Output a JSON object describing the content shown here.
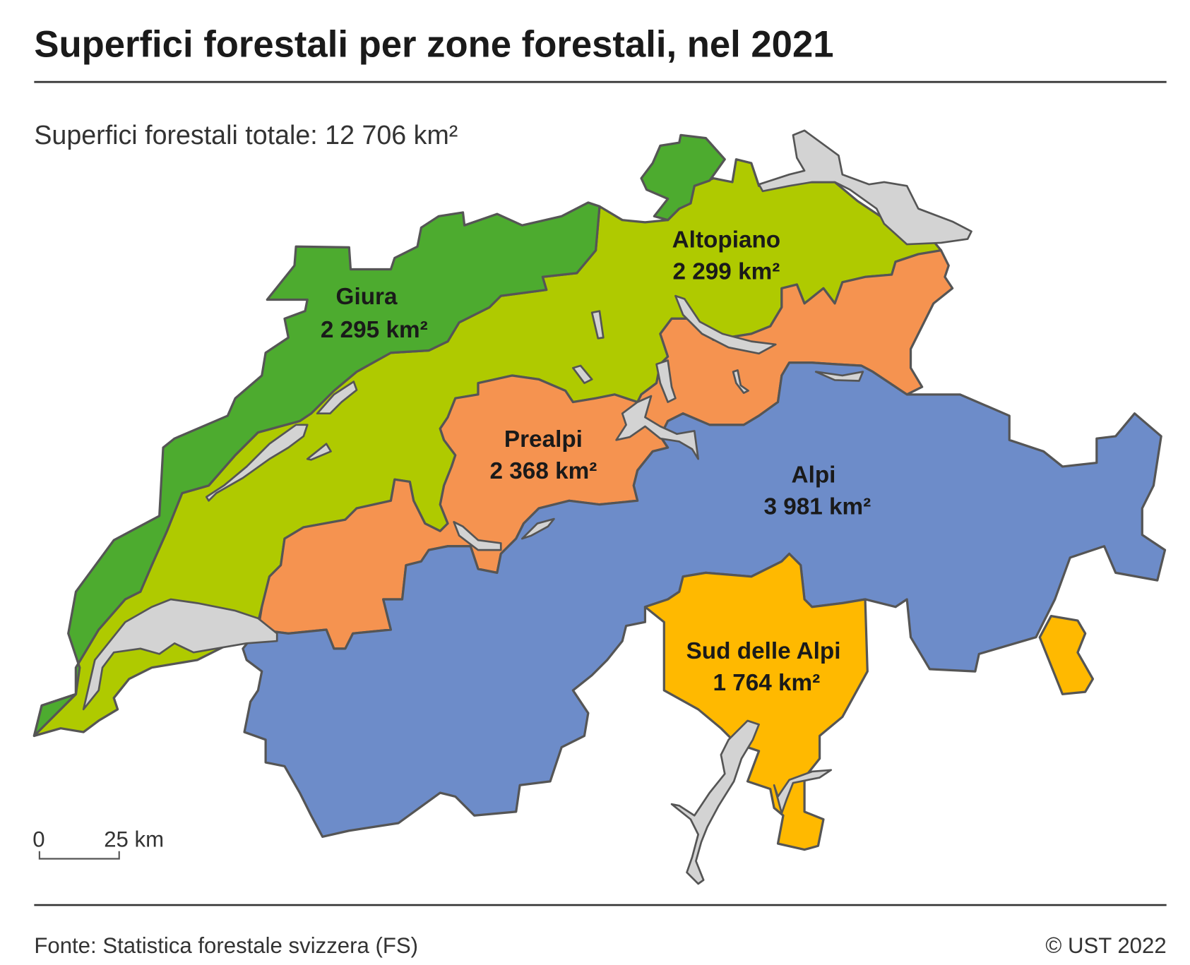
{
  "title": "Superfici forestali per zone forestali, nel 2021",
  "subtitle": "Superfici forestali totale: 12 706 km²",
  "zones": [
    {
      "name": "Giura",
      "value": "2 295 km²",
      "color": "#4dab2f"
    },
    {
      "name": "Altopiano",
      "value": "2 299 km²",
      "color": "#afca00"
    },
    {
      "name": "Prealpi",
      "value": "2 368 km²",
      "color": "#f59350"
    },
    {
      "name": "Alpi",
      "value": "3 981 km²",
      "color": "#6d8cc9"
    },
    {
      "name": "Sud delle Alpi",
      "value": "1 764 km²",
      "color": "#ffb900"
    }
  ],
  "lake_color": "#d3d3d3",
  "scale_bar": {
    "start": "0",
    "end": "25 km"
  },
  "footer": {
    "source": "Fonte: Statistica forestale svizzera (FS)",
    "copyright": "© UST 2022"
  }
}
